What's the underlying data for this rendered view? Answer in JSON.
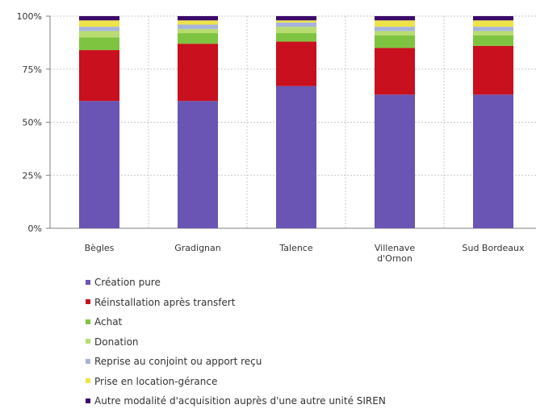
{
  "chart_data": {
    "type": "bar",
    "stacked": true,
    "categories": [
      "Bègles",
      "Gradignan",
      "Talence",
      "Villenave d'Ornon",
      "Sud Bordeaux"
    ],
    "y_ticks": [
      "0%",
      "25%",
      "50%",
      "75%",
      "100%"
    ],
    "ylim": [
      0,
      100
    ],
    "grid": true,
    "legend_position": "bottom",
    "series": [
      {
        "name": "Création pure",
        "color": "#6a54b4",
        "values": [
          60,
          60,
          67,
          63,
          63
        ]
      },
      {
        "name": "Réinstallation après transfert",
        "color": "#c8101e",
        "values": [
          24,
          27,
          21,
          22,
          23
        ]
      },
      {
        "name": "Achat",
        "color": "#7fc440",
        "values": [
          6,
          5,
          4,
          6,
          5
        ]
      },
      {
        "name": "Donation",
        "color": "#b8dc70",
        "values": [
          3,
          2,
          3,
          2,
          2
        ]
      },
      {
        "name": "Reprise au conjoint ou apport reçu",
        "color": "#a6b4dc",
        "values": [
          2,
          2,
          2,
          2,
          2
        ]
      },
      {
        "name": "Prise en location-gérance",
        "color": "#eee34a",
        "values": [
          3,
          2,
          1,
          3,
          3
        ]
      },
      {
        "name": "Autre modalité d'acquisition auprès d'une autre unité SIREN",
        "color": "#3c0a6a",
        "values": [
          2,
          2,
          2,
          2,
          2
        ]
      }
    ]
  }
}
